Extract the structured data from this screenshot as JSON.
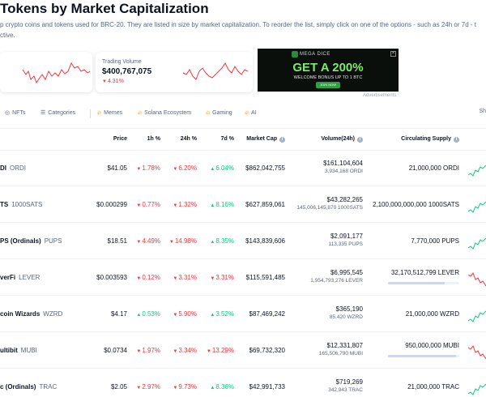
{
  "header": {
    "title": "Tokens by Market Capitalization",
    "description_lines": [
      "p crypto coins and tokens used for BRC-20. They are listed in size by market capitalization. To reorder the list, simply click on one of the options - such as 24h or 7d - t",
      "ctive."
    ]
  },
  "market_cap_card": {
    "trend": "down"
  },
  "volume_card": {
    "label": "Trading Volume",
    "value": "$400,767,075",
    "change": "4.31%",
    "change_dir": "down"
  },
  "ad": {
    "brand": "MEGA DICE",
    "headline": "GET A 200%",
    "sub": "WELCOME BONUS UP TO 1 BTC",
    "cta": "JOIN NOW",
    "close_label": "×",
    "caption": "Advertisements"
  },
  "filters": {
    "items": [
      {
        "label": "NFTs",
        "icon": "image-icon"
      },
      {
        "label": "Categories",
        "icon": "list-icon"
      },
      {
        "label": "Memes",
        "icon": "flame-icon"
      },
      {
        "label": "Solana Ecosystem",
        "icon": "flame-icon"
      },
      {
        "label": "Gaming",
        "icon": "flame-icon"
      },
      {
        "label": "AI",
        "icon": "flame-icon"
      }
    ],
    "edge": "Sh"
  },
  "table": {
    "headers": {
      "price": "Price",
      "h1": "1h %",
      "h24": "24h %",
      "d7": "7d %",
      "market_cap": "Market Cap",
      "volume": "Volume(24h)",
      "supply": "Circulating Supply"
    },
    "rows": [
      {
        "name": "DI",
        "symbol": "ORDI",
        "price": "$41.05",
        "h1": "1.78%",
        "h1_dir": "down",
        "h24": "6.20%",
        "h24_dir": "down",
        "d7": "6.04%",
        "d7_dir": "up",
        "market_cap": "$862,042,755",
        "volume_usd": "$161,104,604",
        "volume_token": "3,934,168 ORDI",
        "supply": "21,000,000 ORDI",
        "supply_fraction": null,
        "spark": "up"
      },
      {
        "name": "TS",
        "symbol": "1000SATS",
        "price": "$0.000299",
        "h1": "0.77%",
        "h1_dir": "down",
        "h24": "1.32%",
        "h24_dir": "down",
        "d7": "8.16%",
        "d7_dir": "up",
        "market_cap": "$627,859,061",
        "volume_usd": "$43,282,265",
        "volume_token": "145,006,145,870 1000SATS",
        "supply": "2,100,000,000,000 1000SATS",
        "supply_fraction": null,
        "spark": "up"
      },
      {
        "name": "PS (Ordinals)",
        "symbol": "PUPS",
        "price": "$18.51",
        "h1": "4.49%",
        "h1_dir": "down",
        "h24": "14.98%",
        "h24_dir": "down",
        "d7": "8.35%",
        "d7_dir": "up",
        "market_cap": "$143,839,606",
        "volume_usd": "$2,091,177",
        "volume_token": "113,335 PUPS",
        "supply": "7,770,000 PUPS",
        "supply_fraction": null,
        "spark": "up"
      },
      {
        "name": "verFi",
        "symbol": "LEVER",
        "price": "$0.003593",
        "h1": "0.12%",
        "h1_dir": "down",
        "h24": "3.31%",
        "h24_dir": "down",
        "d7": "3.31%",
        "d7_dir": "down",
        "market_cap": "$115,591,485",
        "volume_usd": "$6,995,545",
        "volume_token": "1,954,793,276 LEVER",
        "supply": "32,170,512,799 LEVER",
        "supply_fraction": 0.8,
        "spark": "down"
      },
      {
        "name": "coin Wizards",
        "symbol": "WZRD",
        "price": "$4.17",
        "h1": "0.53%",
        "h1_dir": "up",
        "h24": "5.90%",
        "h24_dir": "down",
        "d7": "3.52%",
        "d7_dir": "up",
        "market_cap": "$87,469,242",
        "volume_usd": "$365,190",
        "volume_token": "85,420 WZRD",
        "supply": "21,000,000 WZRD",
        "supply_fraction": null,
        "spark": "up"
      },
      {
        "name": "ultibit",
        "symbol": "MUBI",
        "price": "$0.0734",
        "h1": "1.97%",
        "h1_dir": "down",
        "h24": "3.34%",
        "h24_dir": "down",
        "d7": "13.29%",
        "d7_dir": "down",
        "market_cap": "$69,732,320",
        "volume_usd": "$12,331,807",
        "volume_token": "165,506,790 MUBI",
        "supply": "950,000,000 MUBI",
        "supply_fraction": 0.95,
        "spark": "down"
      },
      {
        "name": "c (Ordinals)",
        "symbol": "TRAC",
        "price": "$2.05",
        "h1": "2.97%",
        "h1_dir": "down",
        "h24": "9.73%",
        "h24_dir": "down",
        "d7": "8.36%",
        "d7_dir": "up",
        "market_cap": "$42,991,733",
        "volume_usd": "$719,269",
        "volume_token": "342,943 TRAC",
        "supply": "21,000,000 TRAC",
        "supply_fraction": null,
        "spark": "up"
      }
    ]
  },
  "colors": {
    "up": "#16c784",
    "down": "#ea3943",
    "text": "#0d1421",
    "muted": "#58667e"
  }
}
